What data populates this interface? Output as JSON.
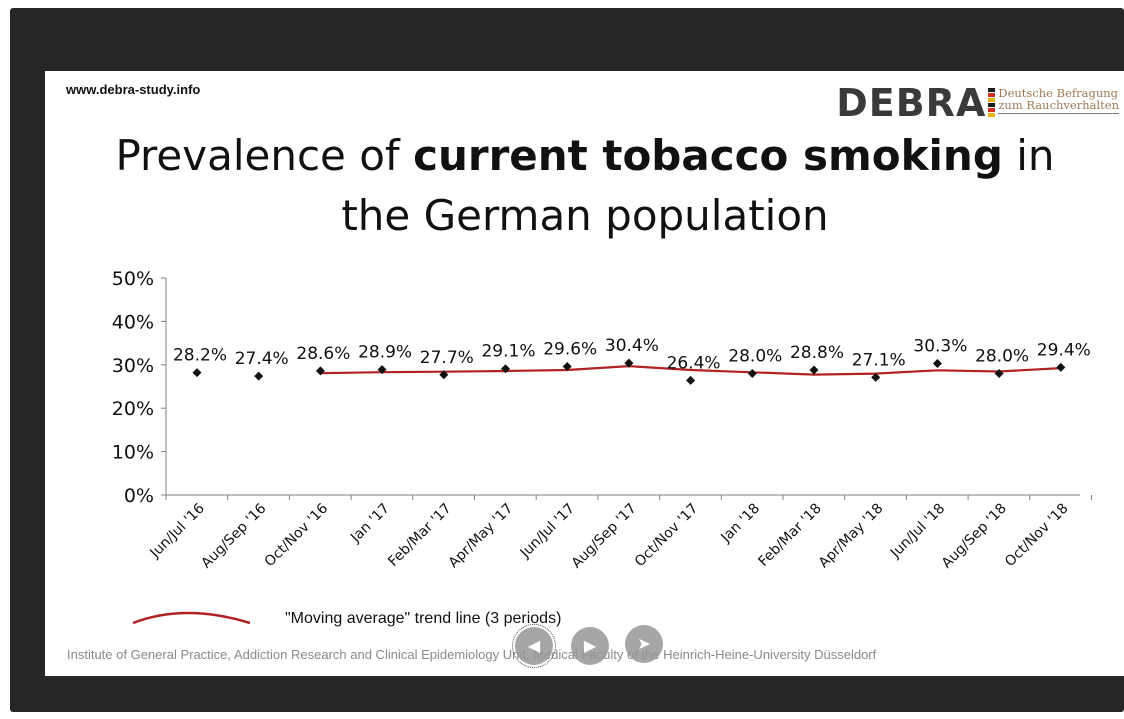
{
  "slide": {
    "site_url": "www.debra-study.info",
    "logo": {
      "word": "DEBRA",
      "sub_line1": "Deutsche Befragung",
      "sub_line2": "zum Rauchverhalten",
      "colors": [
        "#1a1a1a",
        "#d12f1f",
        "#e8b311",
        "#1a1a1a",
        "#d12f1f",
        "#e8b311"
      ]
    },
    "title": {
      "part1": "Prevalence of ",
      "bold": "current tobacco smoking",
      "part2": " in",
      "line2": "the German population"
    },
    "legend_label": "\"Moving average\" trend line (3 periods)",
    "footer": "Institute of General Practice, Addiction Research and Clinical Epidemiology Unit, Medical Faculty of the Heinrich-Heine-University Düsseldorf"
  },
  "controls": {
    "prev_icon": "arrow-left-icon",
    "play_icon": "play-icon",
    "next_icon": "arrow-right-icon"
  },
  "chart_data": {
    "type": "scatter",
    "categories": [
      "Jun/Jul '16",
      "Aug/Sep '16",
      "Oct/Nov '16",
      "Jan '17",
      "Feb/Mar '17",
      "Apr/May '17",
      "Jun/Jul '17",
      "Aug/Sep '17",
      "Oct/Nov '17",
      "Jan '18",
      "Feb/Mar '18",
      "Apr/May '18",
      "Jun/Jul '18",
      "Aug/Sep '18",
      "Oct/Nov '18"
    ],
    "values": [
      28.2,
      27.4,
      28.6,
      28.9,
      27.7,
      29.1,
      29.6,
      30.4,
      26.4,
      28.0,
      28.8,
      27.1,
      30.3,
      28.0,
      29.4
    ],
    "data_labels": [
      "28.2%",
      "27.4%",
      "28.6%",
      "28.9%",
      "27.7%",
      "29.1%",
      "29.6%",
      "30.4%",
      "26.4%",
      "28.0%",
      "28.8%",
      "27.1%",
      "30.3%",
      "28.0%",
      "29.4%"
    ],
    "y_ticks": [
      "0%",
      "10%",
      "20%",
      "30%",
      "40%",
      "50%"
    ],
    "ylim": [
      0,
      50
    ],
    "trendline": {
      "type": "moving-average",
      "periods": 3,
      "color": "#b22222"
    },
    "marker_color": "#111111",
    "grid": false,
    "legend": "bottom-left"
  }
}
